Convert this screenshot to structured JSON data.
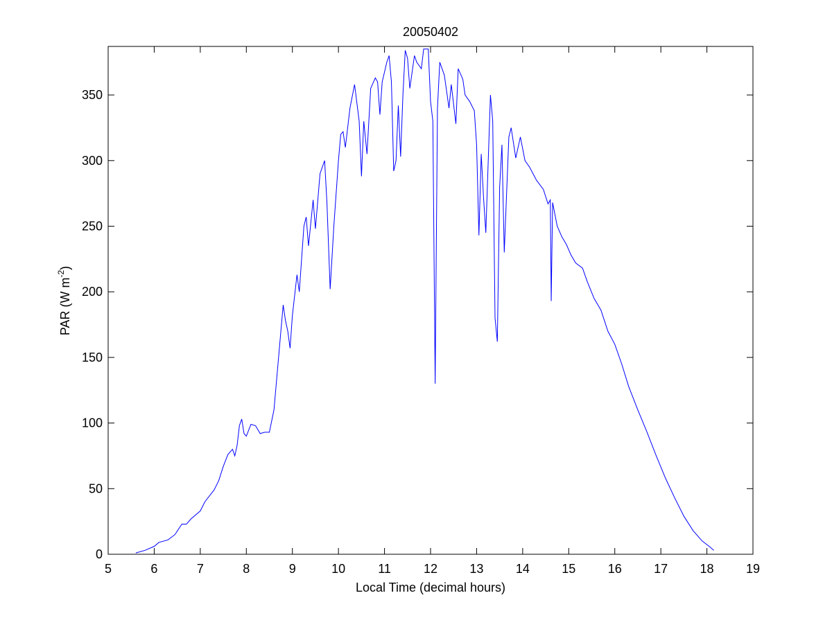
{
  "chart_data": {
    "type": "line",
    "title": "20050402",
    "xlabel": "Local Time (decimal hours)",
    "ylabel": {
      "base": "PAR (W m",
      "superscript": "-2",
      "end": ")"
    },
    "xlim": [
      5,
      19
    ],
    "xticks": [
      5,
      6,
      7,
      8,
      9,
      10,
      11,
      12,
      13,
      14,
      15,
      16,
      17,
      18,
      19
    ],
    "ylim": [
      0,
      387
    ],
    "yticks": [
      0,
      50,
      100,
      150,
      200,
      250,
      300,
      350
    ],
    "grid": false,
    "series": [
      {
        "color": "#0000ff",
        "x": [
          5.6,
          5.8,
          6.0,
          6.1,
          6.3,
          6.45,
          6.6,
          6.7,
          6.8,
          7.0,
          7.1,
          7.3,
          7.4,
          7.5,
          7.6,
          7.7,
          7.75,
          7.8,
          7.85,
          7.9,
          7.95,
          8.0,
          8.1,
          8.2,
          8.3,
          8.4,
          8.5,
          8.6,
          8.7,
          8.8,
          8.85,
          8.9,
          8.95,
          9.0,
          9.1,
          9.15,
          9.25,
          9.3,
          9.35,
          9.45,
          9.5,
          9.6,
          9.7,
          9.75,
          9.82,
          9.9,
          10.0,
          10.05,
          10.1,
          10.15,
          10.25,
          10.35,
          10.45,
          10.5,
          10.55,
          10.62,
          10.7,
          10.8,
          10.85,
          10.9,
          10.95,
          11.05,
          11.1,
          11.15,
          11.2,
          11.25,
          11.3,
          11.35,
          11.4,
          11.45,
          11.5,
          11.55,
          11.65,
          11.7,
          11.8,
          11.85,
          11.95,
          12.0,
          12.05,
          12.1,
          12.15,
          12.2,
          12.3,
          12.4,
          12.45,
          12.55,
          12.6,
          12.7,
          12.75,
          12.85,
          12.95,
          13.0,
          13.05,
          13.1,
          13.15,
          13.2,
          13.3,
          13.35,
          13.4,
          13.45,
          13.5,
          13.55,
          13.6,
          13.7,
          13.75,
          13.85,
          13.95,
          14.05,
          14.15,
          14.3,
          14.45,
          14.55,
          14.6,
          14.62,
          14.65,
          14.75,
          14.85,
          14.95,
          15.05,
          15.15,
          15.3,
          15.4,
          15.55,
          15.7,
          15.85,
          16.0,
          16.15,
          16.3,
          16.5,
          16.7,
          16.9,
          17.1,
          17.3,
          17.5,
          17.7,
          17.9,
          18.05,
          18.15
        ],
        "values": [
          1,
          3,
          6,
          9,
          11,
          15,
          23,
          23,
          27,
          33,
          40,
          49,
          56,
          67,
          76,
          80,
          75,
          83,
          98,
          103,
          92,
          90,
          99,
          98,
          92,
          93,
          93,
          110,
          150,
          190,
          178,
          170,
          157,
          182,
          213,
          200,
          250,
          257,
          235,
          270,
          248,
          290,
          300,
          268,
          202,
          250,
          300,
          320,
          322,
          310,
          340,
          358,
          330,
          288,
          330,
          305,
          355,
          363,
          360,
          335,
          360,
          375,
          380,
          360,
          292,
          300,
          342,
          303,
          350,
          384,
          378,
          355,
          380,
          375,
          370,
          385,
          385,
          345,
          330,
          130,
          340,
          375,
          365,
          340,
          358,
          328,
          370,
          362,
          350,
          345,
          338,
          312,
          243,
          305,
          272,
          245,
          350,
          330,
          180,
          162,
          280,
          312,
          230,
          318,
          325,
          302,
          318,
          300,
          295,
          285,
          278,
          267,
          270,
          193,
          268,
          250,
          242,
          236,
          228,
          222,
          218,
          208,
          195,
          186,
          170,
          160,
          145,
          128,
          110,
          93,
          75,
          58,
          43,
          29,
          18,
          10,
          6,
          3
        ]
      }
    ]
  }
}
